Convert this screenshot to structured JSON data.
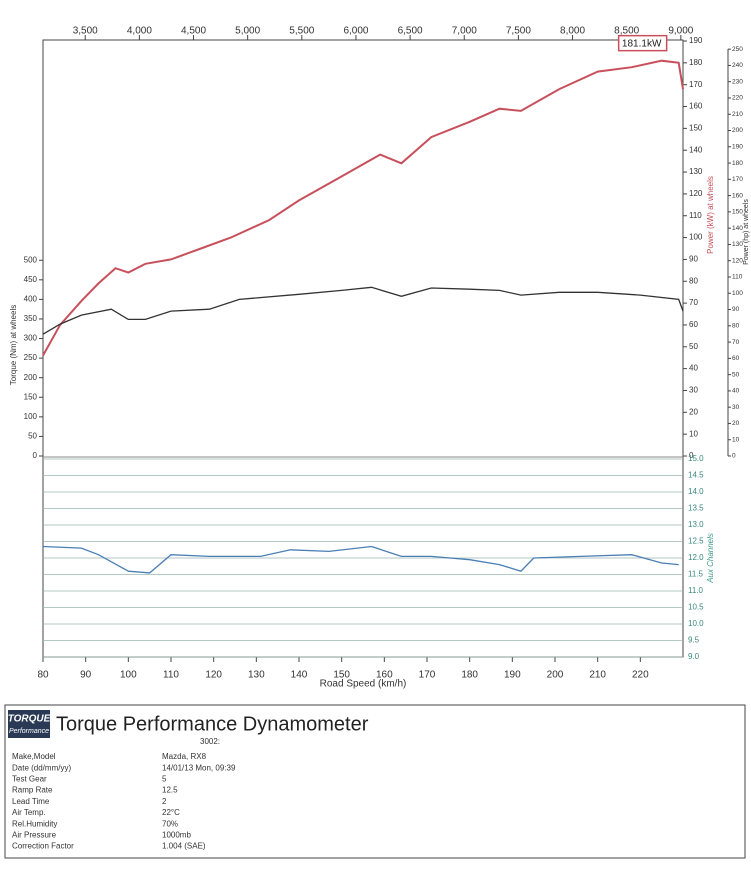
{
  "chart_data": {
    "type": "line",
    "xlabel": "Road Speed (km/h)",
    "xlim": [
      80,
      230
    ],
    "xticks": [
      80,
      90,
      100,
      110,
      120,
      130,
      140,
      150,
      160,
      170,
      180,
      190,
      200,
      210,
      220
    ],
    "x2lim": [
      3110,
      9020
    ],
    "x2ticks": [
      {
        "value": 3500,
        "label": "3,500"
      },
      {
        "value": 4000,
        "label": "4,000"
      },
      {
        "value": 4500,
        "label": "4,500"
      },
      {
        "value": 5000,
        "label": "5,000"
      },
      {
        "value": 5500,
        "label": "5,500"
      },
      {
        "value": 6000,
        "label": "6,000"
      },
      {
        "value": 6500,
        "label": "6,500"
      },
      {
        "value": 7000,
        "label": "7,000"
      },
      {
        "value": 7500,
        "label": "7,500"
      },
      {
        "value": 8000,
        "label": "8,000"
      },
      {
        "value": 8500,
        "label": "8,500"
      },
      {
        "value": 9000,
        "label": "9,000"
      }
    ],
    "ylabel": "Power (kW) at wheels",
    "ylim": [
      0,
      190
    ],
    "yticks": [
      0,
      10,
      20,
      30,
      40,
      50,
      60,
      70,
      80,
      90,
      100,
      110,
      120,
      130,
      140,
      150,
      160,
      170,
      180,
      190
    ],
    "y2label": "Power (hp) at wheels",
    "y2lim": [
      0,
      255
    ],
    "y2ticks": [
      0,
      10,
      20,
      30,
      40,
      50,
      60,
      70,
      80,
      90,
      100,
      110,
      120,
      130,
      140,
      150,
      160,
      170,
      180,
      190,
      200,
      210,
      220,
      230,
      240,
      250
    ],
    "y3label": "Torque (Nm) at wheels",
    "y3lim": [
      0,
      1060
    ],
    "y3ticks": [
      0,
      50,
      100,
      150,
      200,
      250,
      300,
      350,
      400,
      450,
      500
    ],
    "y4label": "Aux Channels",
    "y4lim": [
      9,
      15
    ],
    "y4ticks": [
      {
        "value": 9,
        "label": "9.0"
      },
      9.5,
      {
        "value": 10,
        "label": "10.0"
      },
      10.5,
      {
        "value": 11,
        "label": "11.0"
      },
      11.5,
      {
        "value": 12,
        "label": "12.0"
      },
      12.5,
      {
        "value": 13,
        "label": "13.0"
      },
      13.5,
      {
        "value": 14,
        "label": "14.0"
      },
      14.5,
      {
        "value": 15,
        "label": "15.0"
      }
    ],
    "y4grid": true,
    "series": [
      {
        "axis": "y",
        "color": "#c8505c",
        "x": [
          80,
          84,
          89,
          93,
          97,
          100,
          104,
          110,
          117,
          124,
          133,
          140,
          150,
          159,
          164,
          171,
          180,
          187,
          192,
          201,
          210,
          218,
          225,
          229,
          230
        ],
        "values": [
          46,
          60,
          71,
          79,
          86,
          84,
          88,
          90,
          95,
          100,
          108,
          117,
          128,
          138,
          134,
          146,
          153,
          159,
          158,
          168,
          176,
          178,
          181,
          180,
          168
        ]
      },
      {
        "axis": "y3",
        "color": "#333333",
        "x": [
          80,
          84,
          89,
          96,
          100,
          104,
          110,
          119,
          126,
          140,
          150,
          157,
          164,
          171,
          180,
          187,
          192,
          201,
          210,
          220,
          229,
          230
        ],
        "values": [
          311,
          337,
          360,
          375,
          349,
          349,
          370,
          375,
          400,
          413,
          423,
          431,
          408,
          429,
          426,
          423,
          411,
          418,
          418,
          411,
          400,
          370
        ]
      },
      {
        "axis": "y4",
        "color": "#4a7fb5",
        "x": [
          80,
          89,
          93,
          100,
          105,
          110,
          119,
          131,
          138,
          147,
          157,
          164,
          171,
          180,
          187,
          192,
          195,
          206,
          218,
          225,
          229
        ],
        "values": [
          12.35,
          12.3,
          12.1,
          11.6,
          11.55,
          12.1,
          12.05,
          12.05,
          12.25,
          12.2,
          12.35,
          12.05,
          12.05,
          11.95,
          11.8,
          11.6,
          12.0,
          12.05,
          12.1,
          11.85,
          11.8
        ]
      }
    ],
    "annotation": "181.1kW"
  },
  "report": {
    "logo": {
      "name": "TORQUE",
      "sub": "Performance"
    },
    "title": "Torque Performance Dynamometer",
    "code": "3002:",
    "rows": [
      [
        "Make,Model",
        "Mazda, RX8"
      ],
      [
        "Date (dd/mm/yy)",
        "14/01/13 Mon, 09:39"
      ],
      [
        "Test Gear",
        "5"
      ],
      [
        "Ramp Rate",
        "12.5"
      ],
      [
        "Lead Time",
        "2"
      ],
      [
        "Air Temp.",
        "22°C"
      ],
      [
        "Rel.Humidity",
        "70%"
      ],
      [
        "Air Pressure",
        "1000mb"
      ],
      [
        "Correction Factor",
        "1.004 (SAE)"
      ]
    ]
  }
}
